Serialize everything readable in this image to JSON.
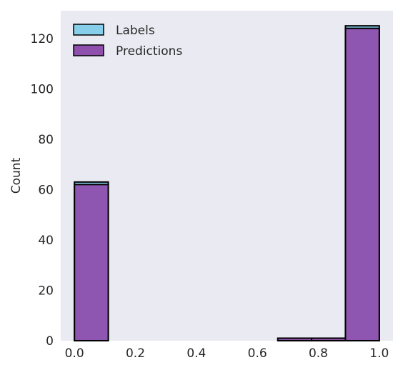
{
  "chart_data": {
    "type": "bar",
    "title": "",
    "xlabel": "",
    "ylabel": "Count",
    "xlim": [
      -0.045,
      1.045
    ],
    "ylim": [
      0,
      131
    ],
    "x_ticks": [
      "0.0",
      "0.2",
      "0.4",
      "0.6",
      "0.8",
      "1.0"
    ],
    "x_tick_values": [
      0.0,
      0.2,
      0.4,
      0.6,
      0.8,
      1.0
    ],
    "y_ticks": [
      "0",
      "20",
      "40",
      "60",
      "80",
      "100",
      "120"
    ],
    "y_tick_values": [
      0,
      20,
      40,
      60,
      80,
      100,
      120
    ],
    "grid": false,
    "legend_position": "top-left",
    "series": [
      {
        "name": "Labels",
        "color": "#87ceeb",
        "bins": [
          {
            "x0": 0.0,
            "x1": 0.111,
            "count": 63
          },
          {
            "x0": 0.889,
            "x1": 1.0,
            "count": 125
          }
        ]
      },
      {
        "name": "Predictions",
        "color": "#8e4fad",
        "bins": [
          {
            "x0": 0.0,
            "x1": 0.111,
            "count": 62
          },
          {
            "x0": 0.667,
            "x1": 0.778,
            "count": 1
          },
          {
            "x0": 0.778,
            "x1": 0.889,
            "count": 1
          },
          {
            "x0": 0.889,
            "x1": 1.0,
            "count": 124
          }
        ]
      }
    ]
  },
  "colors": {
    "plot_background": "#eaeaf2",
    "bar_edge": "#000000",
    "overlap": "#7d55ab"
  }
}
